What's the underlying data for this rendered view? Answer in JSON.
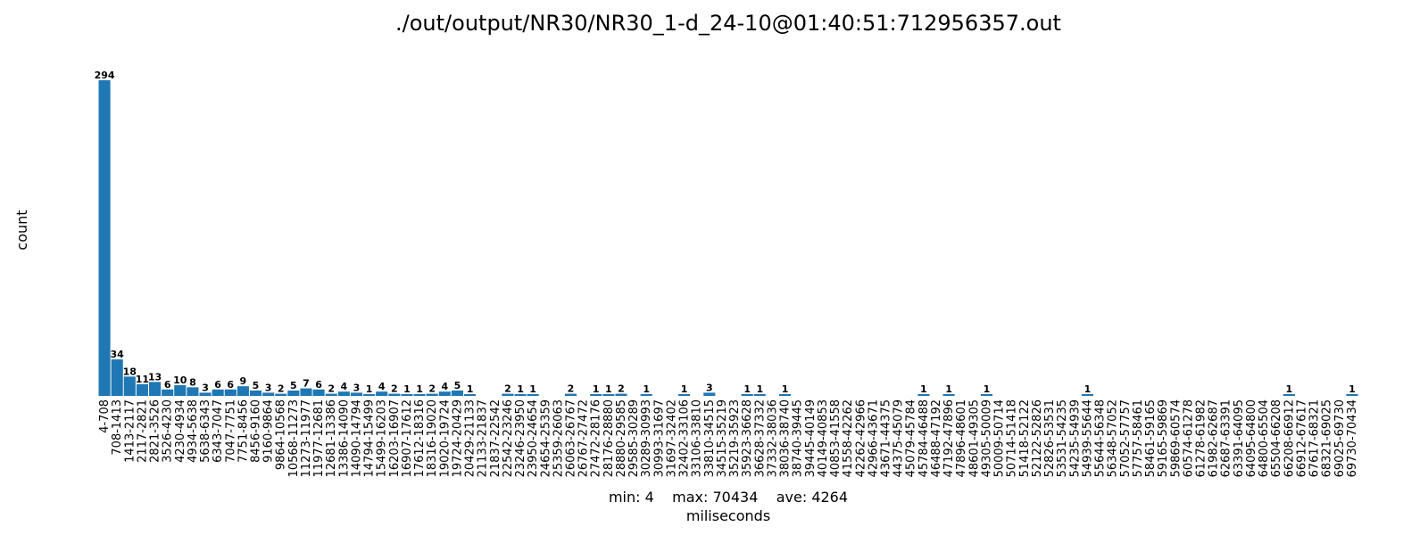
{
  "chart_data": {
    "type": "bar",
    "title": "./out/output/NR30/NR30_1-d_24-10@01:40:51:712956357.out",
    "xlabel": "miliseconds",
    "ylabel": "count",
    "stats": "min: 4    max: 70434    ave: 4264",
    "bar_color": "#1f77b4",
    "grid": false,
    "legend": "none",
    "ylim": [
      0,
      294
    ],
    "categories": [
      "4-708",
      "708-1413",
      "1413-2117",
      "2117-2821",
      "2821-3526",
      "3526-4230",
      "4230-4934",
      "4934-5638",
      "5638-6343",
      "6343-7047",
      "7047-7751",
      "7751-8456",
      "8456-9160",
      "9160-9864",
      "9864-10568",
      "10568-11273",
      "11273-11977",
      "11977-12681",
      "12681-13386",
      "13386-14090",
      "14090-14794",
      "14794-15499",
      "15499-16203",
      "16203-16907",
      "16907-17612",
      "17612-18316",
      "18316-19020",
      "19020-19724",
      "19724-20429",
      "20429-21133",
      "21133-21837",
      "21837-22542",
      "22542-23246",
      "23246-23950",
      "23950-24654",
      "24654-25359",
      "25359-26063",
      "26063-26767",
      "26767-27472",
      "27472-28176",
      "28176-28880",
      "28880-29585",
      "29585-30289",
      "30289-30993",
      "30993-31697",
      "31697-32402",
      "32402-33106",
      "33106-33810",
      "33810-34515",
      "34515-35219",
      "35219-35923",
      "35923-36628",
      "36628-37332",
      "37332-38036",
      "38036-38740",
      "38740-39445",
      "39445-40149",
      "40149-40853",
      "40853-41558",
      "41558-42262",
      "42262-42966",
      "42966-43671",
      "43671-44375",
      "44375-45079",
      "45079-45784",
      "45784-46488",
      "46488-47192",
      "47192-47896",
      "47896-48601",
      "48601-49305",
      "49305-50009",
      "50009-50714",
      "50714-51418",
      "51418-52122",
      "52122-52826",
      "52826-53531",
      "53531-54235",
      "54235-54939",
      "54939-55644",
      "55644-56348",
      "56348-57052",
      "57052-57757",
      "57757-58461",
      "58461-59165",
      "59165-59869",
      "59869-60574",
      "60574-61278",
      "61278-61982",
      "61982-62687",
      "62687-63391",
      "63391-64095",
      "64095-64800",
      "64800-65504",
      "65504-66208",
      "66208-66912",
      "66912-67617",
      "67617-68321",
      "68321-69025",
      "69025-69730",
      "69730-70434"
    ],
    "values": [
      294,
      34,
      18,
      11,
      13,
      6,
      10,
      8,
      3,
      6,
      6,
      9,
      5,
      3,
      2,
      5,
      7,
      6,
      2,
      4,
      3,
      1,
      4,
      2,
      1,
      1,
      2,
      4,
      5,
      1,
      0,
      0,
      2,
      1,
      1,
      0,
      0,
      2,
      0,
      1,
      1,
      2,
      0,
      1,
      0,
      0,
      1,
      0,
      3,
      0,
      0,
      1,
      1,
      0,
      1,
      0,
      0,
      0,
      0,
      0,
      0,
      0,
      0,
      0,
      0,
      1,
      0,
      1,
      0,
      0,
      1,
      0,
      0,
      0,
      0,
      0,
      0,
      0,
      1,
      0,
      0,
      0,
      0,
      0,
      0,
      0,
      0,
      0,
      0,
      0,
      0,
      0,
      0,
      0,
      1,
      0,
      0,
      0,
      0,
      1
    ]
  }
}
